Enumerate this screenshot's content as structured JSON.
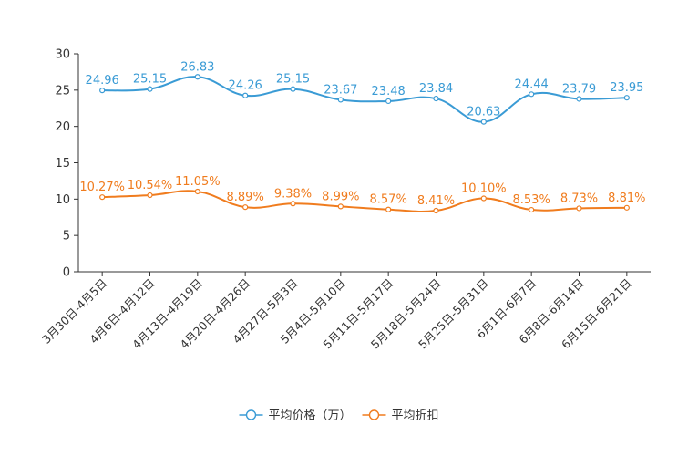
{
  "chart_data": {
    "type": "line",
    "title": "",
    "xlabel": "",
    "ylabel": "",
    "ylim": [
      0,
      30
    ],
    "yticks": [
      0,
      5,
      10,
      15,
      20,
      25,
      30
    ],
    "grid": false,
    "legend_position": "bottom",
    "categories": [
      "3月30日-4月5日",
      "4月6日-4月12日",
      "4月13日-4月19日",
      "4月20日-4月26日",
      "4月27日-5月3日",
      "5月4日-5月10日",
      "5月11日-5月17日",
      "5月18日-5月24日",
      "5月25日-5月31日",
      "6月1日-6月7日",
      "6月8日-6月14日",
      "6月15日-6月21日"
    ],
    "series": [
      {
        "name": "平均价格（万）",
        "color": "#3a9bd5",
        "values": [
          24.96,
          25.15,
          26.83,
          24.26,
          25.15,
          23.67,
          23.48,
          23.84,
          20.63,
          24.44,
          23.79,
          23.95
        ],
        "labels": [
          "24.96",
          "25.15",
          "26.83",
          "24.26",
          "25.15",
          "23.67",
          "23.48",
          "23.84",
          "20.63",
          "24.44",
          "23.79",
          "23.95"
        ]
      },
      {
        "name": "平均折扣",
        "color": "#f07c1e",
        "values": [
          10.27,
          10.54,
          11.05,
          8.89,
          9.38,
          8.99,
          8.57,
          8.41,
          10.1,
          8.53,
          8.73,
          8.81
        ],
        "labels": [
          "10.27%",
          "10.54%",
          "11.05%",
          "8.89%",
          "9.38%",
          "8.99%",
          "8.57%",
          "8.41%",
          "10.10%",
          "8.53%",
          "8.73%",
          "8.81%"
        ]
      }
    ]
  }
}
